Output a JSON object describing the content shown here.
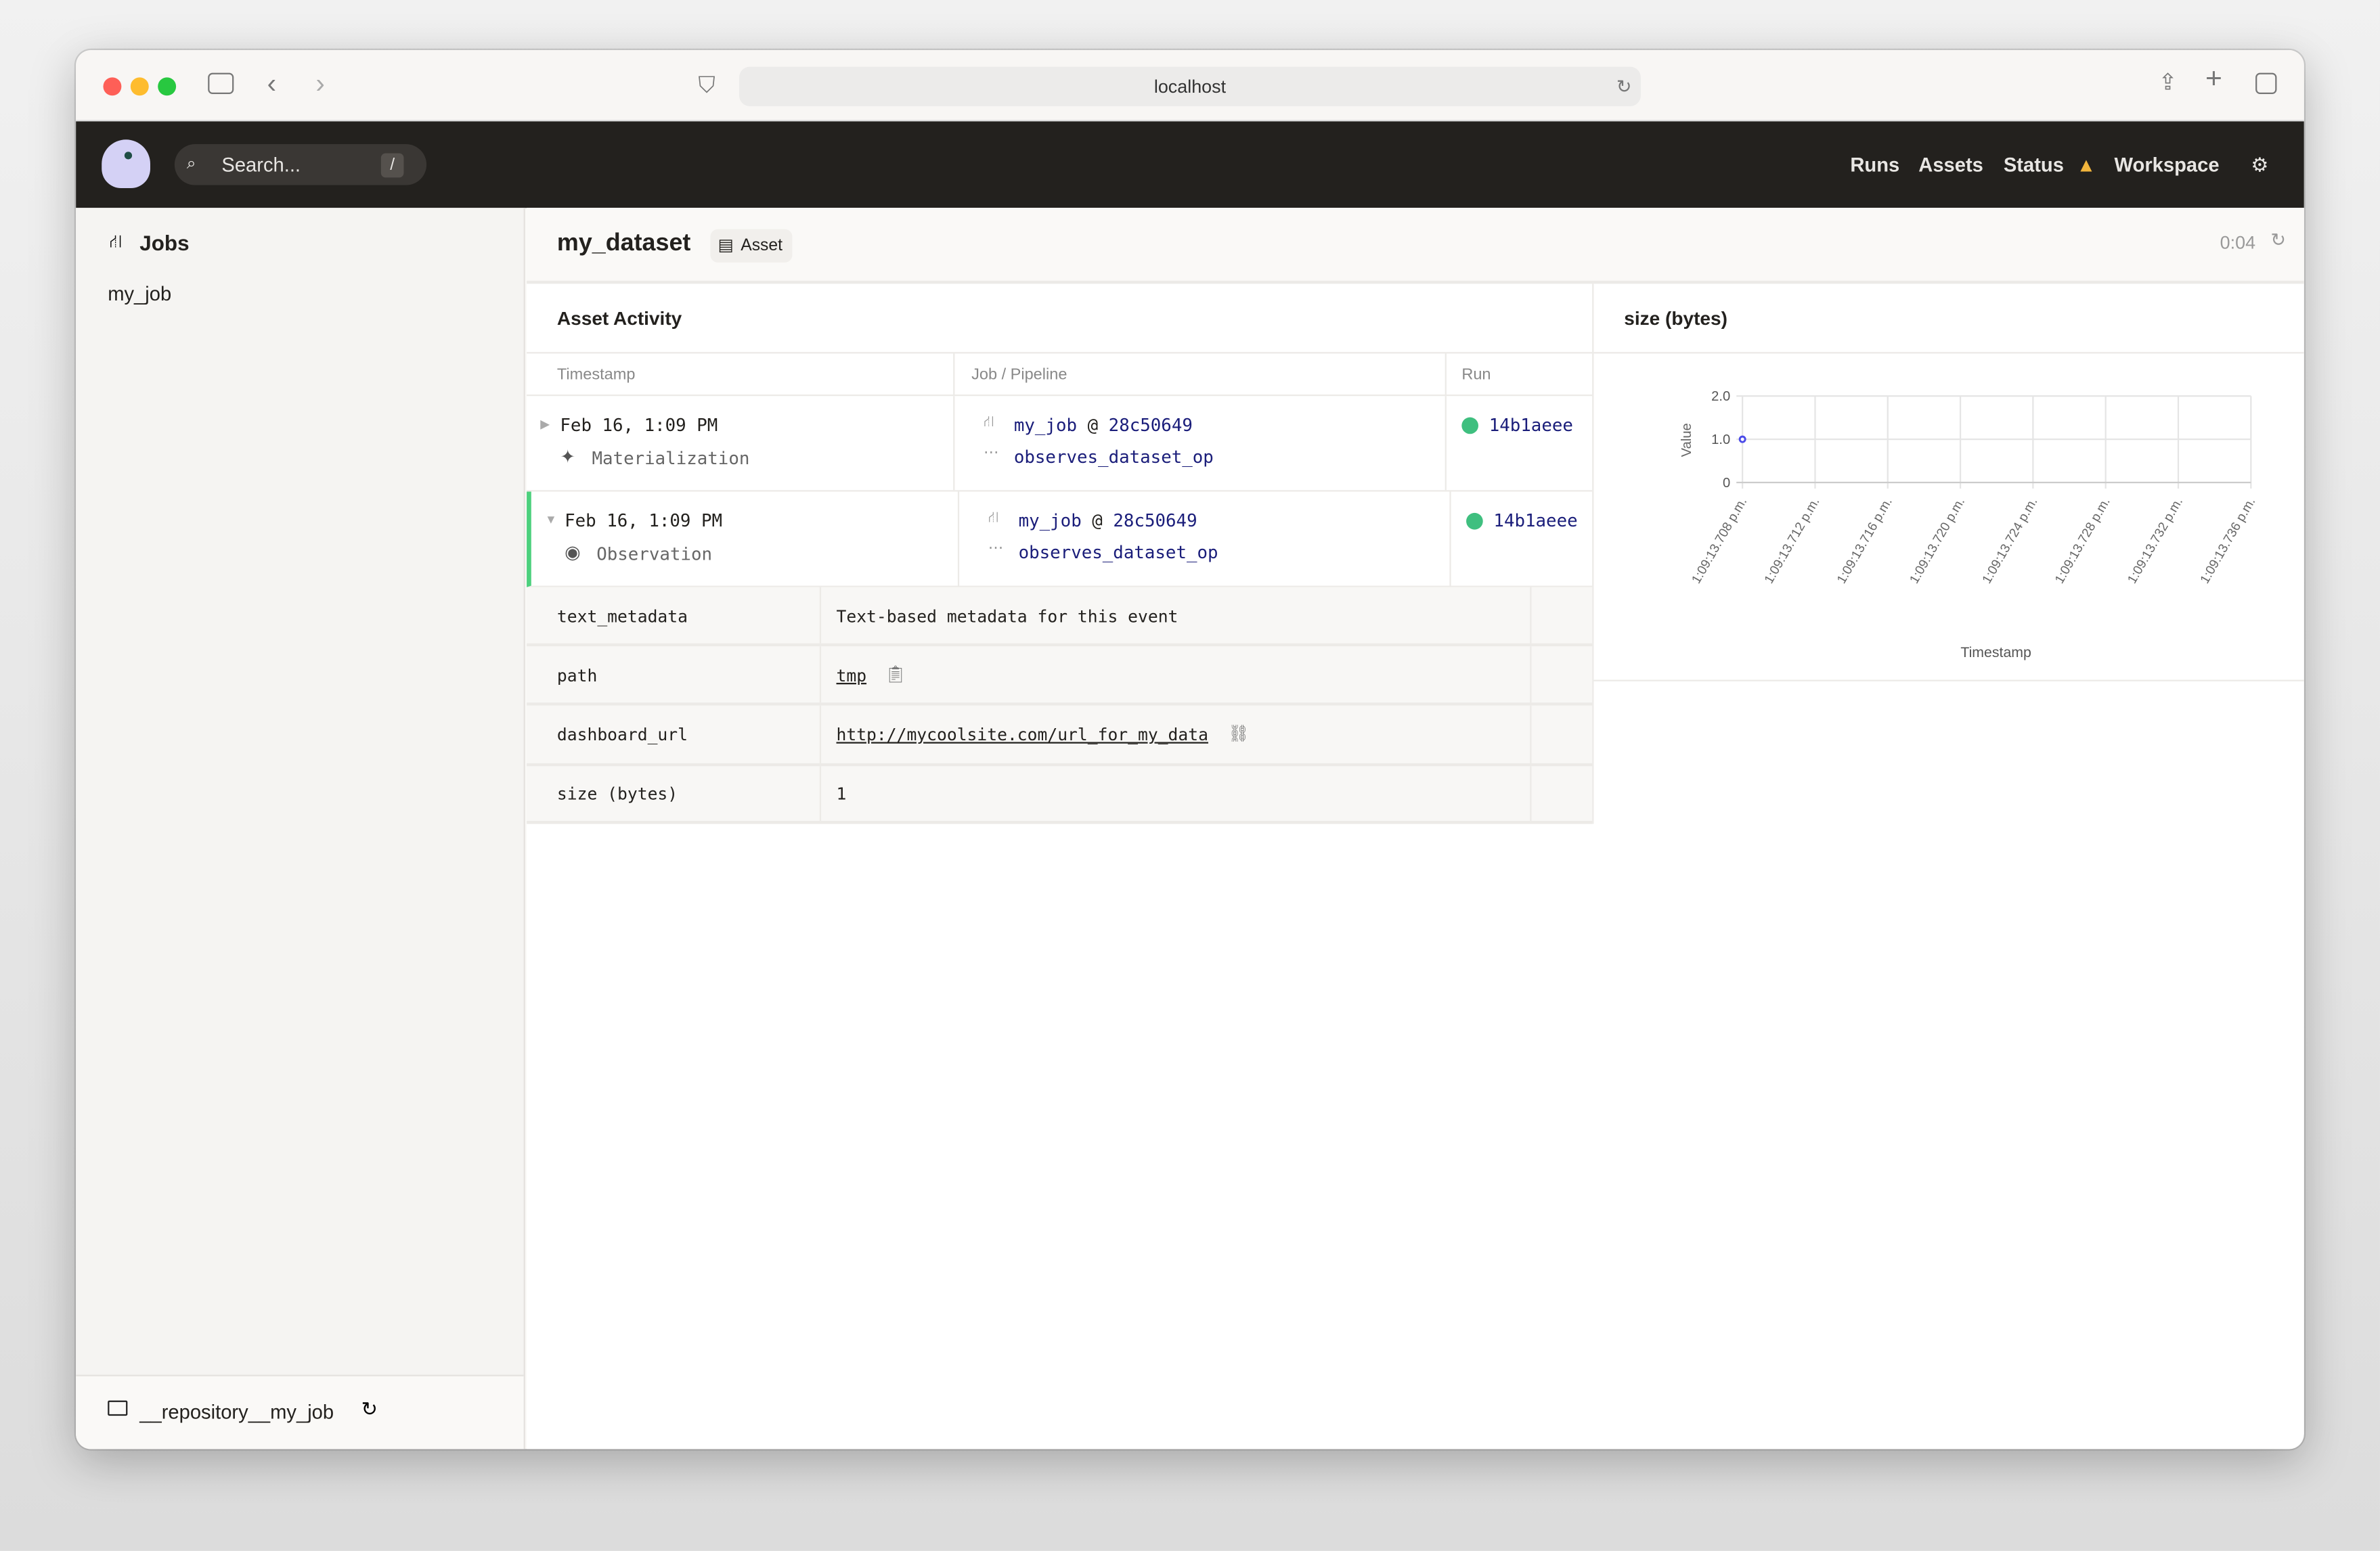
{
  "browser": {
    "url": "localhost"
  },
  "header": {
    "search_placeholder": "Search...",
    "search_shortcut": "/",
    "nav": [
      "Runs",
      "Assets",
      "Status",
      "Workspace"
    ]
  },
  "sidebar": {
    "section": "Jobs",
    "items": [
      "my_job"
    ],
    "repository": "__repository__my_job"
  },
  "page": {
    "title": "my_dataset",
    "badge": "Asset",
    "refresh_timer": "0:04"
  },
  "activity": {
    "title": "Asset Activity",
    "columns": [
      "Timestamp",
      "Job / Pipeline",
      "Run"
    ],
    "rows": [
      {
        "timestamp": "Feb 16, 1:09 PM",
        "type": "Materialization",
        "job": "my_job",
        "at": "@",
        "snapshot": "28c50649",
        "op": "observes_dataset_op",
        "run": "14b1aeee",
        "expanded": false
      },
      {
        "timestamp": "Feb 16, 1:09 PM",
        "type": "Observation",
        "job": "my_job",
        "at": "@",
        "snapshot": "28c50649",
        "op": "observes_dataset_op",
        "run": "14b1aeee",
        "expanded": true
      }
    ],
    "metadata": [
      {
        "key": "text_metadata",
        "value": "Text-based metadata for this event"
      },
      {
        "key": "path",
        "value": "tmp"
      },
      {
        "key": "dashboard_url",
        "value": "http://mycoolsite.com/url_for_my_data"
      },
      {
        "key": "size (bytes)",
        "value": "1"
      }
    ]
  },
  "colors": {
    "header_bg": "#23211e",
    "success": "#3fbf7f",
    "link": "#1a1d7a",
    "warning": "#f2b53c",
    "point": "#4b4be8"
  },
  "chart_data": {
    "type": "scatter",
    "title": "size (bytes)",
    "xlabel": "Timestamp",
    "ylabel": "Value",
    "x": [
      "1:09:13.708 p.m."
    ],
    "y": [
      1
    ],
    "ylim": [
      0,
      2
    ],
    "yticks": [
      "0",
      "1.0",
      "2.0"
    ],
    "xticks": [
      "1:09:13.708 p.m.",
      "1:09:13.712 p.m.",
      "1:09:13.716 p.m.",
      "1:09:13.720 p.m.",
      "1:09:13.724 p.m.",
      "1:09:13.728 p.m.",
      "1:09:13.732 p.m.",
      "1:09:13.736 p.m."
    ],
    "grid": true,
    "legend": "none"
  }
}
